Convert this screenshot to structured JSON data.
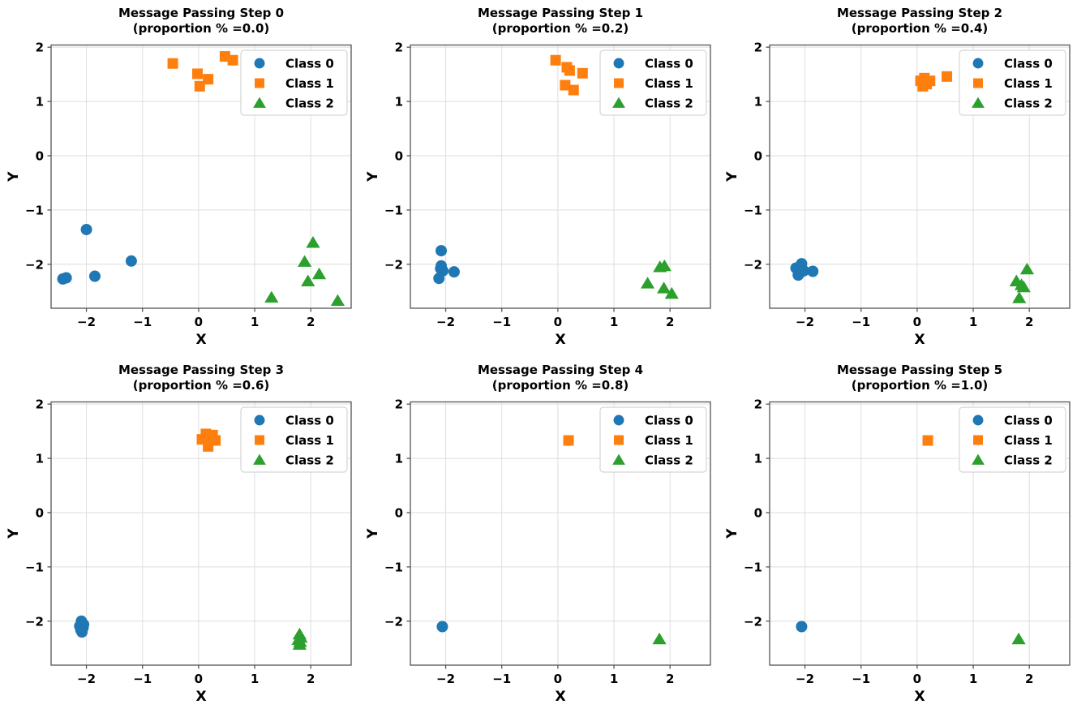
{
  "figure": {
    "background": "#ffffff",
    "grid_color": "#dedede",
    "spine_color": "#555555",
    "text_color": "#000000",
    "legend_border_color": "#d5d5d5",
    "classes": [
      {
        "label": "Class 0",
        "marker": "circle",
        "color": "#1f77b4"
      },
      {
        "label": "Class 1",
        "marker": "square",
        "color": "#ff7f0e"
      },
      {
        "label": "Class 2",
        "marker": "triangle",
        "color": "#2ca02c"
      }
    ]
  },
  "chart_data": [
    {
      "type": "scatter",
      "title": "Message Passing Step 0",
      "subtitle": "(proportion % =0.0)",
      "xlabel": "X",
      "ylabel": "Y",
      "xlim": [
        -2.63,
        2.72
      ],
      "ylim": [
        -2.81,
        2.04
      ],
      "xticks": [
        -2,
        -1,
        0,
        1,
        2
      ],
      "yticks": [
        -2,
        -1,
        0,
        1,
        2
      ],
      "grid": true,
      "legend_position": "upper right",
      "series": [
        {
          "name": "Class 0",
          "marker": "circle",
          "color": "#1f77b4",
          "points": [
            [
              -2.0,
              -1.36
            ],
            [
              -1.2,
              -1.94
            ],
            [
              -1.85,
              -2.22
            ],
            [
              -2.42,
              -2.27
            ],
            [
              -2.36,
              -2.25
            ]
          ]
        },
        {
          "name": "Class 1",
          "marker": "square",
          "color": "#ff7f0e",
          "points": [
            [
              -0.46,
              1.7
            ],
            [
              -0.02,
              1.51
            ],
            [
              0.17,
              1.41
            ],
            [
              0.02,
              1.28
            ],
            [
              0.47,
              1.83
            ],
            [
              0.61,
              1.76
            ]
          ]
        },
        {
          "name": "Class 2",
          "marker": "triangle",
          "color": "#2ca02c",
          "points": [
            [
              2.04,
              -1.6
            ],
            [
              1.89,
              -1.95
            ],
            [
              2.15,
              -2.18
            ],
            [
              1.95,
              -2.31
            ],
            [
              1.3,
              -2.61
            ],
            [
              2.48,
              -2.67
            ]
          ]
        }
      ]
    },
    {
      "type": "scatter",
      "title": "Message Passing Step 1",
      "subtitle": "(proportion % =0.2)",
      "xlabel": "X",
      "ylabel": "Y",
      "xlim": [
        -2.63,
        2.72
      ],
      "ylim": [
        -2.81,
        2.04
      ],
      "xticks": [
        -2,
        -1,
        0,
        1,
        2
      ],
      "yticks": [
        -2,
        -1,
        0,
        1,
        2
      ],
      "grid": true,
      "legend_position": "upper right",
      "series": [
        {
          "name": "Class 0",
          "marker": "circle",
          "color": "#1f77b4",
          "points": [
            [
              -2.08,
              -1.75
            ],
            [
              -2.08,
              -2.03
            ],
            [
              -2.05,
              -2.12
            ],
            [
              -1.85,
              -2.14
            ],
            [
              -2.12,
              -2.26
            ],
            [
              -2.09,
              -2.08
            ]
          ]
        },
        {
          "name": "Class 1",
          "marker": "square",
          "color": "#ff7f0e",
          "points": [
            [
              -0.04,
              1.76
            ],
            [
              0.16,
              1.63
            ],
            [
              0.21,
              1.57
            ],
            [
              0.44,
              1.52
            ],
            [
              0.13,
              1.3
            ],
            [
              0.28,
              1.21
            ]
          ]
        },
        {
          "name": "Class 2",
          "marker": "triangle",
          "color": "#2ca02c",
          "points": [
            [
              1.82,
              -2.05
            ],
            [
              1.9,
              -2.03
            ],
            [
              1.6,
              -2.35
            ],
            [
              1.89,
              -2.44
            ],
            [
              2.03,
              -2.54
            ]
          ]
        }
      ]
    },
    {
      "type": "scatter",
      "title": "Message Passing Step 2",
      "subtitle": "(proportion % =0.4)",
      "xlabel": "X",
      "ylabel": "Y",
      "xlim": [
        -2.63,
        2.72
      ],
      "ylim": [
        -2.81,
        2.04
      ],
      "xticks": [
        -2,
        -1,
        0,
        1,
        2
      ],
      "yticks": [
        -2,
        -1,
        0,
        1,
        2
      ],
      "grid": true,
      "legend_position": "upper right",
      "series": [
        {
          "name": "Class 0",
          "marker": "circle",
          "color": "#1f77b4",
          "points": [
            [
              -2.06,
              -1.99
            ],
            [
              -2.16,
              -2.07
            ],
            [
              -2.02,
              -2.12
            ],
            [
              -1.86,
              -2.13
            ],
            [
              -2.12,
              -2.2
            ],
            [
              -2.08,
              -2.15
            ]
          ]
        },
        {
          "name": "Class 1",
          "marker": "square",
          "color": "#ff7f0e",
          "points": [
            [
              0.06,
              1.38
            ],
            [
              0.13,
              1.43
            ],
            [
              0.17,
              1.32
            ],
            [
              0.23,
              1.38
            ],
            [
              0.1,
              1.28
            ],
            [
              0.53,
              1.46
            ]
          ]
        },
        {
          "name": "Class 2",
          "marker": "triangle",
          "color": "#2ca02c",
          "points": [
            [
              1.96,
              -2.09
            ],
            [
              1.77,
              -2.31
            ],
            [
              1.86,
              -2.38
            ],
            [
              1.9,
              -2.42
            ],
            [
              1.82,
              -2.62
            ]
          ]
        }
      ]
    },
    {
      "type": "scatter",
      "title": "Message Passing Step 3",
      "subtitle": "(proportion % =0.6)",
      "xlabel": "X",
      "ylabel": "Y",
      "xlim": [
        -2.63,
        2.72
      ],
      "ylim": [
        -2.81,
        2.04
      ],
      "xticks": [
        -2,
        -1,
        0,
        1,
        2
      ],
      "yticks": [
        -2,
        -1,
        0,
        1,
        2
      ],
      "grid": true,
      "legend_position": "upper right",
      "series": [
        {
          "name": "Class 0",
          "marker": "circle",
          "color": "#1f77b4",
          "points": [
            [
              -2.09,
              -2.0
            ],
            [
              -2.05,
              -2.06
            ],
            [
              -2.12,
              -2.09
            ],
            [
              -2.06,
              -2.12
            ],
            [
              -2.1,
              -2.16
            ],
            [
              -2.08,
              -2.2
            ]
          ]
        },
        {
          "name": "Class 1",
          "marker": "square",
          "color": "#ff7f0e",
          "points": [
            [
              0.13,
              1.45
            ],
            [
              0.25,
              1.43
            ],
            [
              0.06,
              1.35
            ],
            [
              0.18,
              1.35
            ],
            [
              0.3,
              1.33
            ],
            [
              0.17,
              1.22
            ]
          ]
        },
        {
          "name": "Class 2",
          "marker": "triangle",
          "color": "#2ca02c",
          "points": [
            [
              1.8,
              -2.24
            ],
            [
              1.82,
              -2.3
            ],
            [
              1.78,
              -2.34
            ],
            [
              1.81,
              -2.38
            ],
            [
              1.8,
              -2.43
            ]
          ]
        }
      ]
    },
    {
      "type": "scatter",
      "title": "Message Passing Step 4",
      "subtitle": "(proportion % =0.8)",
      "xlabel": "X",
      "ylabel": "Y",
      "xlim": [
        -2.63,
        2.72
      ],
      "ylim": [
        -2.81,
        2.04
      ],
      "xticks": [
        -2,
        -1,
        0,
        1,
        2
      ],
      "yticks": [
        -2,
        -1,
        0,
        1,
        2
      ],
      "grid": true,
      "legend_position": "upper right",
      "series": [
        {
          "name": "Class 0",
          "marker": "circle",
          "color": "#1f77b4",
          "points": [
            [
              -2.06,
              -2.1
            ]
          ]
        },
        {
          "name": "Class 1",
          "marker": "square",
          "color": "#ff7f0e",
          "points": [
            [
              0.19,
              1.33
            ]
          ]
        },
        {
          "name": "Class 2",
          "marker": "triangle",
          "color": "#2ca02c",
          "points": [
            [
              1.81,
              -2.33
            ]
          ]
        }
      ]
    },
    {
      "type": "scatter",
      "title": "Message Passing Step 5",
      "subtitle": "(proportion % =1.0)",
      "xlabel": "X",
      "ylabel": "Y",
      "xlim": [
        -2.63,
        2.72
      ],
      "ylim": [
        -2.81,
        2.04
      ],
      "xticks": [
        -2,
        -1,
        0,
        1,
        2
      ],
      "yticks": [
        -2,
        -1,
        0,
        1,
        2
      ],
      "grid": true,
      "legend_position": "upper right",
      "series": [
        {
          "name": "Class 0",
          "marker": "circle",
          "color": "#1f77b4",
          "points": [
            [
              -2.06,
              -2.1
            ]
          ]
        },
        {
          "name": "Class 1",
          "marker": "square",
          "color": "#ff7f0e",
          "points": [
            [
              0.19,
              1.33
            ]
          ]
        },
        {
          "name": "Class 2",
          "marker": "triangle",
          "color": "#2ca02c",
          "points": [
            [
              1.81,
              -2.33
            ]
          ]
        }
      ]
    }
  ]
}
